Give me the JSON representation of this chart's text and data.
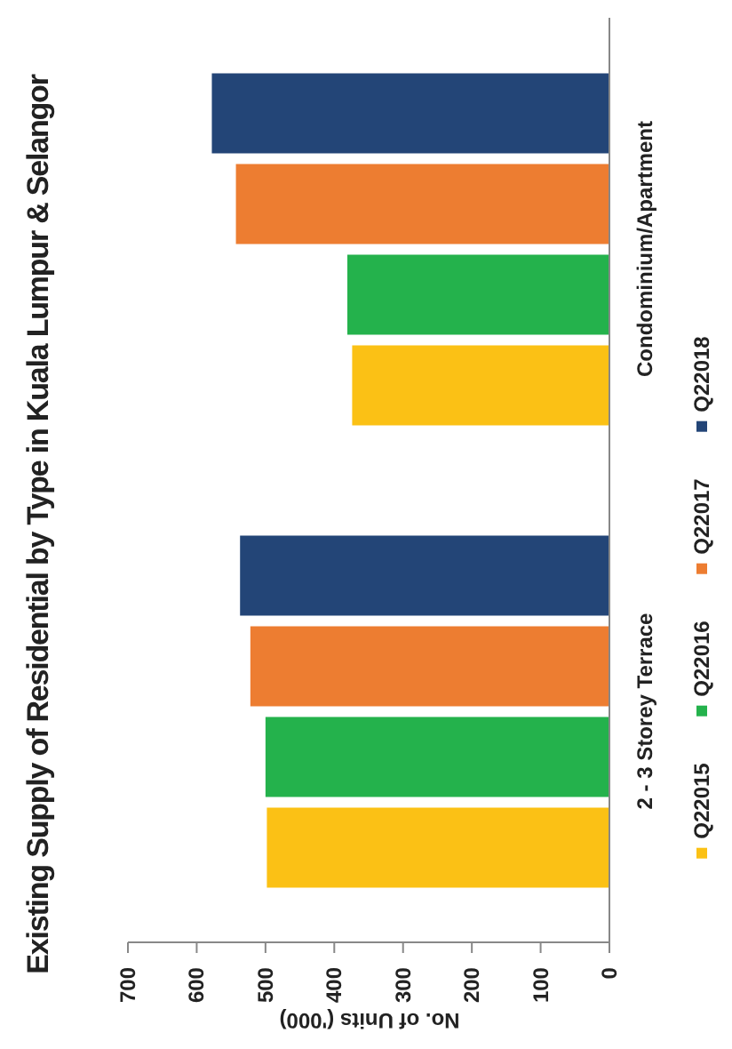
{
  "chart_data": {
    "type": "bar",
    "orientation": "horizontal",
    "title": "Existing Supply of Residential by Type in Kuala Lumpur & Selangor",
    "xlabel": "No. of Units ('000)",
    "categories": [
      "Condominium/Apartment",
      "2 - 3 Storey Terrace"
    ],
    "series": [
      {
        "name": "Q22015",
        "color": "#fbc115",
        "values": [
          374,
          498
        ]
      },
      {
        "name": "Q22016",
        "color": "#24b24c",
        "values": [
          381,
          500
        ]
      },
      {
        "name": "Q22017",
        "color": "#ed7d31",
        "values": [
          543,
          522
        ]
      },
      {
        "name": "Q22018",
        "color": "#234577",
        "values": [
          578,
          537
        ]
      }
    ],
    "xlim": [
      700,
      0
    ],
    "xticks": [
      700,
      600,
      500,
      400,
      300,
      200,
      100,
      0
    ],
    "grid": false,
    "legend": "right"
  }
}
